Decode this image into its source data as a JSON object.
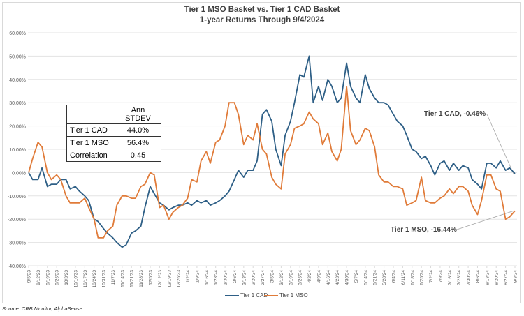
{
  "chart_data": {
    "type": "line",
    "title": "Tier 1 MSO Basket vs. Tier 1 CAD Basket",
    "subtitle": "1-year Returns Through 9/4/2024",
    "xlabel": "",
    "ylabel": "",
    "ylim": [
      -40,
      60
    ],
    "y_ticks": [
      60,
      50,
      40,
      30,
      20,
      10,
      0,
      -10,
      -20,
      -30,
      -40
    ],
    "y_tick_format": "percent-2dp",
    "grid": true,
    "legend": "bottom",
    "x_tick_labels": [
      "9/5/23",
      "9/12/23",
      "9/19/23",
      "9/26/23",
      "10/3/23",
      "10/10/23",
      "10/17/23",
      "10/24/23",
      "10/31/23",
      "11/7/23",
      "11/14/23",
      "11/21/23",
      "11/28/23",
      "12/5/23",
      "12/12/23",
      "12/19/23",
      "12/26/23",
      "1/2/24",
      "1/9/24",
      "1/16/24",
      "1/23/24",
      "1/30/24",
      "2/6/24",
      "2/13/24",
      "2/20/24",
      "2/27/24",
      "3/5/24",
      "3/12/24",
      "3/19/24",
      "3/26/24",
      "4/2/24",
      "4/9/24",
      "4/16/24",
      "4/23/24",
      "4/30/24",
      "5/7/24",
      "5/14/24",
      "5/21/24",
      "5/28/24",
      "6/4/24",
      "6/11/24",
      "6/18/24",
      "6/25/24",
      "7/2/24",
      "7/9/24",
      "7/16/24",
      "7/23/24",
      "7/30/24",
      "8/6/24",
      "8/13/24",
      "8/20/24",
      "8/27/24",
      "9/3/24"
    ],
    "x": [
      "2023-09-05",
      "2023-09-08",
      "2023-09-12",
      "2023-09-15",
      "2023-09-19",
      "2023-09-22",
      "2023-09-26",
      "2023-09-29",
      "2023-10-03",
      "2023-10-06",
      "2023-10-10",
      "2023-10-13",
      "2023-10-17",
      "2023-10-20",
      "2023-10-24",
      "2023-10-27",
      "2023-10-31",
      "2023-11-03",
      "2023-11-07",
      "2023-11-10",
      "2023-11-14",
      "2023-11-17",
      "2023-11-21",
      "2023-11-24",
      "2023-11-28",
      "2023-12-01",
      "2023-12-05",
      "2023-12-08",
      "2023-12-12",
      "2023-12-15",
      "2023-12-19",
      "2023-12-22",
      "2023-12-26",
      "2023-12-29",
      "2024-01-02",
      "2024-01-05",
      "2024-01-09",
      "2024-01-12",
      "2024-01-16",
      "2024-01-19",
      "2024-01-23",
      "2024-01-26",
      "2024-01-30",
      "2024-02-02",
      "2024-02-06",
      "2024-02-09",
      "2024-02-13",
      "2024-02-16",
      "2024-02-20",
      "2024-02-23",
      "2024-02-27",
      "2024-03-01",
      "2024-03-05",
      "2024-03-08",
      "2024-03-12",
      "2024-03-15",
      "2024-03-19",
      "2024-03-22",
      "2024-03-26",
      "2024-03-29",
      "2024-04-02",
      "2024-04-05",
      "2024-04-09",
      "2024-04-12",
      "2024-04-16",
      "2024-04-19",
      "2024-04-23",
      "2024-04-26",
      "2024-04-30",
      "2024-05-03",
      "2024-05-07",
      "2024-05-10",
      "2024-05-14",
      "2024-05-17",
      "2024-05-21",
      "2024-05-24",
      "2024-05-28",
      "2024-05-31",
      "2024-06-04",
      "2024-06-07",
      "2024-06-11",
      "2024-06-14",
      "2024-06-18",
      "2024-06-21",
      "2024-06-25",
      "2024-06-28",
      "2024-07-02",
      "2024-07-05",
      "2024-07-09",
      "2024-07-12",
      "2024-07-16",
      "2024-07-19",
      "2024-07-23",
      "2024-07-26",
      "2024-07-30",
      "2024-08-02",
      "2024-08-06",
      "2024-08-09",
      "2024-08-13",
      "2024-08-16",
      "2024-08-20",
      "2024-08-23",
      "2024-08-27",
      "2024-08-30",
      "2024-09-03"
    ],
    "series": [
      {
        "name": "Tier 1 CAD",
        "color": "#2e5f86",
        "values": [
          0,
          -3,
          -3,
          2,
          -6,
          -5,
          -5,
          -3,
          -3,
          -7,
          -6,
          -8,
          -10,
          -12,
          -20,
          -21,
          -24,
          -26,
          -28,
          -30,
          -32,
          -31,
          -26,
          -25,
          -23,
          -15,
          -6,
          -9,
          -13,
          -14,
          -16,
          -15,
          -14,
          -14,
          -13,
          -14,
          -12,
          -13,
          -12,
          -14,
          -13,
          -12,
          -10,
          -8,
          -3,
          1,
          -2,
          1,
          1,
          5,
          25,
          27,
          22,
          10,
          3,
          16,
          22,
          30,
          42,
          41,
          50,
          30,
          37,
          31,
          40,
          37,
          30,
          32,
          47,
          37,
          32,
          30,
          42,
          36,
          32,
          30,
          30,
          29,
          25,
          22,
          20,
          16,
          10,
          9,
          6,
          7,
          3,
          -1,
          4,
          5,
          1,
          4,
          1,
          3,
          2,
          -3,
          -5,
          -7,
          4,
          4,
          2,
          5,
          1,
          2,
          -0.46
        ]
      },
      {
        "name": "Tier 1 MSO",
        "color": "#e07b39",
        "values": [
          0,
          6,
          13,
          11,
          0,
          -3,
          -1,
          -3,
          -10,
          -13,
          -13,
          -13,
          -11,
          -15,
          -20,
          -28,
          -28,
          -25,
          -23,
          -14,
          -10,
          -10,
          -11,
          -11,
          -6,
          -5,
          0,
          -1,
          -15,
          -14,
          -20,
          -17,
          -15,
          -14,
          -11,
          -3,
          -4,
          5,
          9,
          4,
          13,
          14,
          20,
          30,
          30,
          25,
          12,
          16,
          14,
          21,
          10,
          8,
          -2,
          -5,
          -7,
          8,
          12,
          19,
          20,
          21,
          26,
          23,
          21,
          12,
          17,
          9,
          5,
          10,
          37,
          18,
          12,
          14,
          19,
          18,
          11,
          -1,
          -4,
          -4,
          -6,
          -6,
          -7,
          -14,
          -13,
          -12,
          -2,
          -12,
          -13,
          -13,
          -11,
          -10,
          -7,
          -9,
          -6,
          -6,
          -8,
          -14,
          -18,
          -12,
          -1,
          -1,
          -7,
          -8,
          -20,
          -19,
          -16.44
        ]
      }
    ],
    "annotations": [
      {
        "text": "Tier 1 CAD, -0.46%",
        "series": "Tier 1 CAD"
      },
      {
        "text": "Tier 1 MSO, -16.44%",
        "series": "Tier 1 MSO"
      }
    ]
  },
  "stats_table": {
    "header": [
      "",
      "Ann STDEV"
    ],
    "rows": [
      {
        "label": "Tier 1 CAD",
        "value": "44.0%"
      },
      {
        "label": "Tier 1 MSO",
        "value": "56.4%"
      },
      {
        "label": "Correlation",
        "value": "0.45"
      }
    ]
  },
  "source": "Source: CRB Monitor, AlphaSense"
}
